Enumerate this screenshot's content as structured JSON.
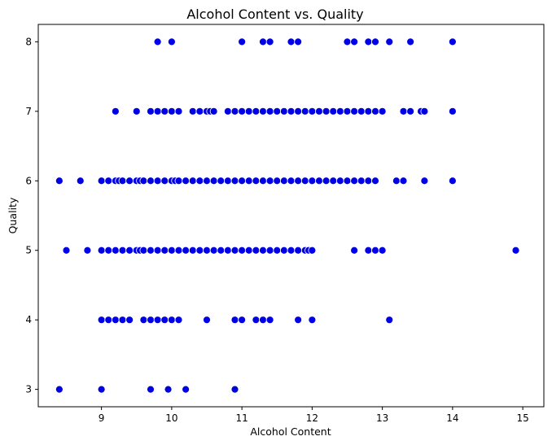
{
  "chart_data": {
    "type": "scatter",
    "title": "Alcohol Content vs. Quality",
    "xlabel": "Alcohol Content",
    "ylabel": "Quality",
    "xlim": [
      8.1,
      15.3
    ],
    "ylim": [
      2.75,
      8.25
    ],
    "xticks": [
      9,
      10,
      11,
      12,
      13,
      14,
      15
    ],
    "yticks": [
      3,
      4,
      5,
      6,
      7,
      8
    ],
    "grid": false,
    "marker_color": "#0000e6",
    "marker_edge_color": "#ffffff",
    "points": [
      {
        "x": 9.8,
        "y": 8
      },
      {
        "x": 10.0,
        "y": 8
      },
      {
        "x": 11.0,
        "y": 8
      },
      {
        "x": 11.3,
        "y": 8
      },
      {
        "x": 11.4,
        "y": 8
      },
      {
        "x": 11.7,
        "y": 8
      },
      {
        "x": 11.8,
        "y": 8
      },
      {
        "x": 12.5,
        "y": 8
      },
      {
        "x": 12.6,
        "y": 8
      },
      {
        "x": 12.8,
        "y": 8
      },
      {
        "x": 12.9,
        "y": 8
      },
      {
        "x": 13.1,
        "y": 8
      },
      {
        "x": 13.4,
        "y": 8
      },
      {
        "x": 14.0,
        "y": 8
      },
      {
        "x": 9.2,
        "y": 7
      },
      {
        "x": 9.5,
        "y": 7
      },
      {
        "x": 9.7,
        "y": 7
      },
      {
        "x": 9.8,
        "y": 7
      },
      {
        "x": 9.9,
        "y": 7
      },
      {
        "x": 10.0,
        "y": 7
      },
      {
        "x": 10.1,
        "y": 7
      },
      {
        "x": 10.3,
        "y": 7
      },
      {
        "x": 10.4,
        "y": 7
      },
      {
        "x": 10.5,
        "y": 7
      },
      {
        "x": 10.55,
        "y": 7
      },
      {
        "x": 10.6,
        "y": 7
      },
      {
        "x": 10.8,
        "y": 7
      },
      {
        "x": 10.9,
        "y": 7
      },
      {
        "x": 11.0,
        "y": 7
      },
      {
        "x": 11.1,
        "y": 7
      },
      {
        "x": 11.2,
        "y": 7
      },
      {
        "x": 11.3,
        "y": 7
      },
      {
        "x": 11.4,
        "y": 7
      },
      {
        "x": 11.5,
        "y": 7
      },
      {
        "x": 11.6,
        "y": 7
      },
      {
        "x": 11.7,
        "y": 7
      },
      {
        "x": 11.8,
        "y": 7
      },
      {
        "x": 11.9,
        "y": 7
      },
      {
        "x": 12.0,
        "y": 7
      },
      {
        "x": 12.1,
        "y": 7
      },
      {
        "x": 12.2,
        "y": 7
      },
      {
        "x": 12.3,
        "y": 7
      },
      {
        "x": 12.4,
        "y": 7
      },
      {
        "x": 12.5,
        "y": 7
      },
      {
        "x": 12.6,
        "y": 7
      },
      {
        "x": 12.7,
        "y": 7
      },
      {
        "x": 12.8,
        "y": 7
      },
      {
        "x": 12.9,
        "y": 7
      },
      {
        "x": 13.0,
        "y": 7
      },
      {
        "x": 13.3,
        "y": 7
      },
      {
        "x": 13.4,
        "y": 7
      },
      {
        "x": 13.55,
        "y": 7
      },
      {
        "x": 13.6,
        "y": 7
      },
      {
        "x": 14.0,
        "y": 7
      },
      {
        "x": 8.4,
        "y": 6
      },
      {
        "x": 8.7,
        "y": 6
      },
      {
        "x": 9.0,
        "y": 6
      },
      {
        "x": 9.1,
        "y": 6
      },
      {
        "x": 9.2,
        "y": 6
      },
      {
        "x": 9.25,
        "y": 6
      },
      {
        "x": 9.3,
        "y": 6
      },
      {
        "x": 9.4,
        "y": 6
      },
      {
        "x": 9.5,
        "y": 6
      },
      {
        "x": 9.55,
        "y": 6
      },
      {
        "x": 9.6,
        "y": 6
      },
      {
        "x": 9.7,
        "y": 6
      },
      {
        "x": 9.8,
        "y": 6
      },
      {
        "x": 9.9,
        "y": 6
      },
      {
        "x": 10.0,
        "y": 6
      },
      {
        "x": 10.05,
        "y": 6
      },
      {
        "x": 10.1,
        "y": 6
      },
      {
        "x": 10.2,
        "y": 6
      },
      {
        "x": 10.3,
        "y": 6
      },
      {
        "x": 10.4,
        "y": 6
      },
      {
        "x": 10.5,
        "y": 6
      },
      {
        "x": 10.6,
        "y": 6
      },
      {
        "x": 10.7,
        "y": 6
      },
      {
        "x": 10.8,
        "y": 6
      },
      {
        "x": 10.9,
        "y": 6
      },
      {
        "x": 11.0,
        "y": 6
      },
      {
        "x": 11.1,
        "y": 6
      },
      {
        "x": 11.2,
        "y": 6
      },
      {
        "x": 11.3,
        "y": 6
      },
      {
        "x": 11.4,
        "y": 6
      },
      {
        "x": 11.5,
        "y": 6
      },
      {
        "x": 11.6,
        "y": 6
      },
      {
        "x": 11.7,
        "y": 6
      },
      {
        "x": 11.8,
        "y": 6
      },
      {
        "x": 11.9,
        "y": 6
      },
      {
        "x": 12.0,
        "y": 6
      },
      {
        "x": 12.1,
        "y": 6
      },
      {
        "x": 12.2,
        "y": 6
      },
      {
        "x": 12.3,
        "y": 6
      },
      {
        "x": 12.4,
        "y": 6
      },
      {
        "x": 12.5,
        "y": 6
      },
      {
        "x": 12.6,
        "y": 6
      },
      {
        "x": 12.7,
        "y": 6
      },
      {
        "x": 12.8,
        "y": 6
      },
      {
        "x": 12.9,
        "y": 6
      },
      {
        "x": 13.2,
        "y": 6
      },
      {
        "x": 13.3,
        "y": 6
      },
      {
        "x": 13.6,
        "y": 6
      },
      {
        "x": 14.0,
        "y": 6
      },
      {
        "x": 8.5,
        "y": 5
      },
      {
        "x": 8.8,
        "y": 5
      },
      {
        "x": 9.0,
        "y": 5
      },
      {
        "x": 9.1,
        "y": 5
      },
      {
        "x": 9.2,
        "y": 5
      },
      {
        "x": 9.3,
        "y": 5
      },
      {
        "x": 9.4,
        "y": 5
      },
      {
        "x": 9.5,
        "y": 5
      },
      {
        "x": 9.55,
        "y": 5
      },
      {
        "x": 9.6,
        "y": 5
      },
      {
        "x": 9.7,
        "y": 5
      },
      {
        "x": 9.8,
        "y": 5
      },
      {
        "x": 9.9,
        "y": 5
      },
      {
        "x": 10.0,
        "y": 5
      },
      {
        "x": 10.1,
        "y": 5
      },
      {
        "x": 10.2,
        "y": 5
      },
      {
        "x": 10.3,
        "y": 5
      },
      {
        "x": 10.4,
        "y": 5
      },
      {
        "x": 10.5,
        "y": 5
      },
      {
        "x": 10.6,
        "y": 5
      },
      {
        "x": 10.7,
        "y": 5
      },
      {
        "x": 10.8,
        "y": 5
      },
      {
        "x": 10.9,
        "y": 5
      },
      {
        "x": 11.0,
        "y": 5
      },
      {
        "x": 11.1,
        "y": 5
      },
      {
        "x": 11.2,
        "y": 5
      },
      {
        "x": 11.3,
        "y": 5
      },
      {
        "x": 11.4,
        "y": 5
      },
      {
        "x": 11.5,
        "y": 5
      },
      {
        "x": 11.6,
        "y": 5
      },
      {
        "x": 11.7,
        "y": 5
      },
      {
        "x": 11.8,
        "y": 5
      },
      {
        "x": 11.9,
        "y": 5
      },
      {
        "x": 11.95,
        "y": 5
      },
      {
        "x": 12.0,
        "y": 5
      },
      {
        "x": 12.6,
        "y": 5
      },
      {
        "x": 12.8,
        "y": 5
      },
      {
        "x": 12.9,
        "y": 5
      },
      {
        "x": 13.0,
        "y": 5
      },
      {
        "x": 14.9,
        "y": 5
      },
      {
        "x": 9.0,
        "y": 4
      },
      {
        "x": 9.1,
        "y": 4
      },
      {
        "x": 9.2,
        "y": 4
      },
      {
        "x": 9.3,
        "y": 4
      },
      {
        "x": 9.4,
        "y": 4
      },
      {
        "x": 9.6,
        "y": 4
      },
      {
        "x": 9.7,
        "y": 4
      },
      {
        "x": 9.8,
        "y": 4
      },
      {
        "x": 9.9,
        "y": 4
      },
      {
        "x": 10.0,
        "y": 4
      },
      {
        "x": 10.1,
        "y": 4
      },
      {
        "x": 10.5,
        "y": 4
      },
      {
        "x": 10.9,
        "y": 4
      },
      {
        "x": 11.0,
        "y": 4
      },
      {
        "x": 11.2,
        "y": 4
      },
      {
        "x": 11.3,
        "y": 4
      },
      {
        "x": 11.4,
        "y": 4
      },
      {
        "x": 11.8,
        "y": 4
      },
      {
        "x": 12.0,
        "y": 4
      },
      {
        "x": 13.1,
        "y": 4
      },
      {
        "x": 8.4,
        "y": 3
      },
      {
        "x": 9.0,
        "y": 3
      },
      {
        "x": 9.7,
        "y": 3
      },
      {
        "x": 9.95,
        "y": 3
      },
      {
        "x": 10.2,
        "y": 3
      },
      {
        "x": 10.9,
        "y": 3
      }
    ]
  }
}
